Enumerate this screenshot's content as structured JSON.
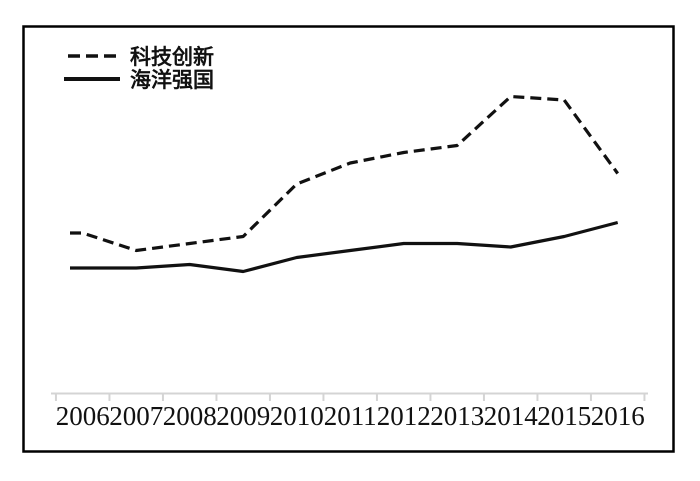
{
  "figure": {
    "background": "#ffffff",
    "border_color": "#000000"
  },
  "legend": {
    "position": "top-left",
    "items": [
      {
        "label": "科技创新",
        "line_style": "dashed"
      },
      {
        "label": "海洋强国",
        "line_style": "solid"
      }
    ]
  },
  "chart_data": {
    "type": "line",
    "title": "",
    "xlabel": "",
    "ylabel": "",
    "x": [
      "2006",
      "2007",
      "2008",
      "2009",
      "2010",
      "2011",
      "2012",
      "2013",
      "2014",
      "2015",
      "2016"
    ],
    "series": [
      {
        "name": "科技创新",
        "style": "dashed",
        "values": [
          46,
          41,
          43,
          45,
          60,
          66,
          69,
          71,
          85,
          84,
          63
        ]
      },
      {
        "name": "海洋强国",
        "style": "solid",
        "values": [
          36,
          36,
          37,
          35,
          39,
          41,
          43,
          43,
          42,
          45,
          49
        ]
      }
    ],
    "value_scale": "relative index (no y-axis shown in figure)",
    "ylim": [
      0,
      100
    ],
    "y_axis_visible": false,
    "grid": false,
    "legend_position": "top-left",
    "line_color": "#111111",
    "axis_color": "#d4d4d4"
  }
}
